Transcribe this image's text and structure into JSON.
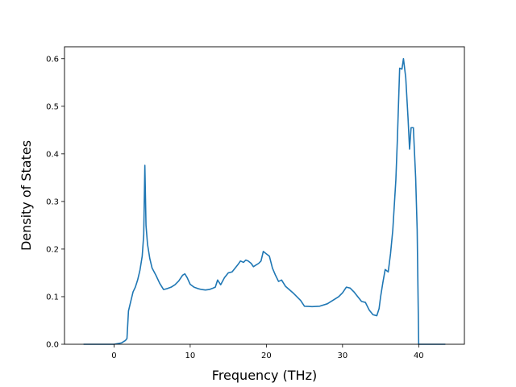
{
  "chart_data": {
    "type": "line",
    "xlabel": "Frequency (THz)",
    "ylabel": "Density of States",
    "xlim": [
      -6.5,
      46
    ],
    "ylim": [
      0,
      0.625
    ],
    "xticks": [
      0,
      10,
      20,
      30,
      40
    ],
    "yticks": [
      0.0,
      0.1,
      0.2,
      0.3,
      0.4,
      0.5,
      0.6
    ],
    "ytick_labels": [
      "0.0",
      "0.1",
      "0.2",
      "0.3",
      "0.4",
      "0.5",
      "0.6"
    ],
    "grid": false,
    "line_color": "#1f77b4",
    "series": [
      {
        "x": [
          -4,
          0,
          1,
          1.5,
          1.7,
          1.9,
          2.2,
          2.5,
          2.8,
          3.1,
          3.4,
          3.7,
          3.9,
          4.05,
          4.2,
          4.4,
          4.7,
          5.0,
          5.5,
          6.0,
          6.5,
          7.0,
          7.5,
          8.0,
          8.5,
          9.0,
          9.3,
          9.6,
          10.0,
          10.5,
          11.0,
          11.5,
          12.0,
          12.5,
          13.0,
          13.3,
          13.6,
          14.0,
          14.5,
          15.0,
          15.5,
          16.0,
          16.3,
          16.6,
          17.0,
          17.3,
          17.6,
          18.0,
          18.3,
          18.6,
          19.0,
          19.3,
          19.6,
          20.0,
          20.4,
          20.8,
          21.2,
          21.6,
          22.0,
          22.5,
          23.0,
          23.5,
          24.0,
          24.5,
          25.0,
          26.0,
          27.0,
          28.0,
          29.0,
          29.5,
          30.0,
          30.5,
          31.0,
          31.5,
          32.0,
          32.5,
          33.0,
          33.5,
          34.0,
          34.5,
          34.8,
          35.0,
          35.3,
          35.6,
          36.0,
          36.3,
          36.6,
          37.0,
          37.2,
          37.5,
          37.8,
          38.0,
          38.3,
          38.6,
          38.8,
          39.0,
          39.3,
          39.6,
          39.8,
          40.0,
          43.5
        ],
        "y": [
          0.0,
          0.0,
          0.003,
          0.008,
          0.012,
          0.07,
          0.09,
          0.11,
          0.12,
          0.135,
          0.155,
          0.185,
          0.23,
          0.376,
          0.25,
          0.21,
          0.18,
          0.16,
          0.145,
          0.128,
          0.115,
          0.117,
          0.12,
          0.125,
          0.133,
          0.145,
          0.148,
          0.14,
          0.126,
          0.12,
          0.117,
          0.115,
          0.114,
          0.115,
          0.118,
          0.12,
          0.135,
          0.125,
          0.14,
          0.15,
          0.152,
          0.162,
          0.168,
          0.175,
          0.172,
          0.177,
          0.175,
          0.17,
          0.163,
          0.166,
          0.17,
          0.175,
          0.195,
          0.19,
          0.185,
          0.16,
          0.145,
          0.132,
          0.135,
          0.122,
          0.115,
          0.108,
          0.1,
          0.092,
          0.08,
          0.079,
          0.08,
          0.085,
          0.095,
          0.1,
          0.108,
          0.12,
          0.118,
          0.11,
          0.1,
          0.09,
          0.088,
          0.072,
          0.062,
          0.06,
          0.075,
          0.1,
          0.13,
          0.157,
          0.152,
          0.19,
          0.24,
          0.345,
          0.43,
          0.58,
          0.578,
          0.6,
          0.56,
          0.475,
          0.41,
          0.455,
          0.455,
          0.35,
          0.24,
          0.0,
          0.0
        ]
      }
    ]
  }
}
